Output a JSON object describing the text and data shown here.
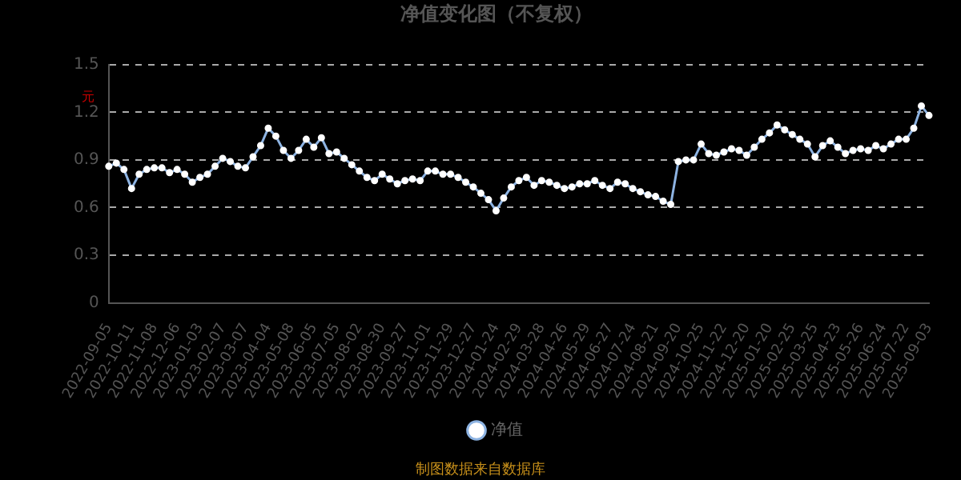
{
  "chart_data": {
    "type": "line",
    "title": "净值变化图（不复权）",
    "ylabel": "元",
    "categories": [
      "2022-09-05",
      null,
      null,
      "2022-10-11",
      null,
      null,
      "2022-11-08",
      null,
      null,
      "2022-12-06",
      null,
      null,
      "2023-01-03",
      null,
      null,
      "2023-02-07",
      null,
      null,
      "2023-03-07",
      null,
      null,
      "2023-04-04",
      null,
      null,
      "2023-05-08",
      null,
      null,
      "2023-06-05",
      null,
      null,
      "2023-07-05",
      null,
      null,
      "2023-08-02",
      null,
      null,
      "2023-08-30",
      null,
      null,
      "2023-09-27",
      null,
      null,
      "2023-11-01",
      null,
      null,
      "2023-11-29",
      null,
      null,
      "2023-12-27",
      null,
      null,
      "2024-01-24",
      null,
      null,
      "2024-02-29",
      null,
      null,
      "2024-03-28",
      null,
      null,
      "2024-04-26",
      null,
      null,
      "2024-05-29",
      null,
      null,
      "2024-06-27",
      null,
      null,
      "2024-07-24",
      null,
      null,
      "2024-08-21",
      null,
      null,
      "2024-09-20",
      null,
      null,
      "2024-10-25",
      null,
      null,
      "2024-11-22",
      null,
      null,
      "2024-12-20",
      null,
      null,
      "2025-01-20",
      null,
      null,
      "2025-02-25",
      null,
      null,
      "2025-03-25",
      null,
      null,
      "2025-04-23",
      null,
      null,
      "2025-05-26",
      null,
      null,
      "2025-06-24",
      null,
      null,
      "2025-07-22",
      null,
      null,
      "2025-09-03"
    ],
    "series": [
      {
        "name": "净值",
        "color": "#8db3e2",
        "values": [
          0.86,
          0.88,
          0.84,
          0.72,
          0.81,
          0.84,
          0.85,
          0.85,
          0.82,
          0.84,
          0.81,
          0.76,
          0.79,
          0.81,
          0.86,
          0.91,
          0.89,
          0.86,
          0.85,
          0.92,
          0.99,
          1.1,
          1.05,
          0.96,
          0.91,
          0.96,
          1.03,
          0.98,
          1.04,
          0.94,
          0.95,
          0.91,
          0.87,
          0.83,
          0.79,
          0.77,
          0.81,
          0.78,
          0.75,
          0.77,
          0.78,
          0.77,
          0.83,
          0.83,
          0.81,
          0.81,
          0.79,
          0.76,
          0.73,
          0.69,
          0.65,
          0.58,
          0.66,
          0.73,
          0.77,
          0.79,
          0.74,
          0.77,
          0.76,
          0.74,
          0.72,
          0.73,
          0.75,
          0.75,
          0.77,
          0.74,
          0.72,
          0.76,
          0.75,
          0.72,
          0.7,
          0.68,
          0.67,
          0.64,
          0.62,
          0.89,
          0.9,
          0.9,
          1.0,
          0.94,
          0.93,
          0.95,
          0.97,
          0.96,
          0.93,
          0.98,
          1.03,
          1.07,
          1.12,
          1.09,
          1.06,
          1.03,
          1.0,
          0.92,
          0.99,
          1.02,
          0.98,
          0.94,
          0.96,
          0.97,
          0.96,
          0.99,
          0.97,
          1.0,
          1.03,
          1.03,
          1.1,
          1.24,
          1.18
        ]
      }
    ],
    "ylim": [
      0,
      1.5
    ],
    "yticks": [
      0,
      0.3,
      0.6,
      0.9,
      1.2,
      1.5
    ],
    "grid": "y",
    "legend": "bottom",
    "marker": "circle",
    "line_style": "solid",
    "annotations": [
      "制图数据来自数据库"
    ]
  }
}
